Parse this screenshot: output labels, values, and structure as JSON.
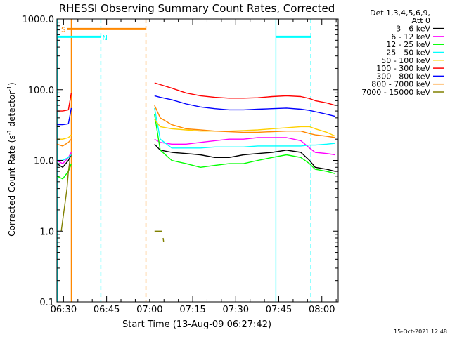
{
  "chart_data": {
    "type": "line",
    "title": "RHESSI Observing Summary Count Rates, Corrected",
    "xlabel": "Start Time (13-Aug-09 06:27:42)",
    "ylabel_main": "Corrected Count Rate (s",
    "ylabel_sup1": "-1",
    "ylabel_mid": " detector",
    "ylabel_sup2": "-1",
    "ylabel_end": ")",
    "y_scale": "log",
    "ylim": [
      0.1,
      1000
    ],
    "xlim_minutes": [
      0,
      98
    ],
    "x_tick_labels": [
      {
        "label": "06:30",
        "minute": 2.3
      },
      {
        "label": "06:45",
        "minute": 17.3
      },
      {
        "label": "07:00",
        "minute": 32.3
      },
      {
        "label": "07:15",
        "minute": 47.3
      },
      {
        "label": "07:30",
        "minute": 62.3
      },
      {
        "label": "07:45",
        "minute": 77.3
      },
      {
        "label": "08:00",
        "minute": 92.3
      }
    ],
    "y_tick_labels": [
      {
        "label": "0.1",
        "value": 0.1
      },
      {
        "label": "1.0",
        "value": 1
      },
      {
        "label": "10.0",
        "value": 10
      },
      {
        "label": "100.0",
        "value": 100
      },
      {
        "label": "1000.0",
        "value": 1000
      }
    ],
    "legend_header": [
      "Det 1,3,4,5,6,9,",
      "Att 0"
    ],
    "legend_placement": "right",
    "series": [
      {
        "name": "3 - 6 keV",
        "color": "#000000",
        "segments": [
          {
            "x": [
              0,
              2,
              4,
              5
            ],
            "y": [
              9,
              8,
              10,
              12
            ]
          },
          {
            "x": [
              34,
              36,
              40,
              45,
              50,
              55,
              60,
              65,
              70,
              75,
              80,
              85,
              88,
              90,
              94,
              97
            ],
            "y": [
              17,
              14,
              13,
              12.5,
              12,
              11,
              11,
              12,
              12.5,
              13,
              14,
              13,
              10,
              8,
              7.5,
              7
            ]
          }
        ]
      },
      {
        "name": "6 - 12 keV",
        "color": "#ff00ff",
        "segments": [
          {
            "x": [
              0,
              2,
              4,
              5
            ],
            "y": [
              10,
              9,
              11,
              13
            ]
          },
          {
            "x": [
              34,
              36,
              40,
              45,
              50,
              55,
              60,
              65,
              70,
              75,
              80,
              85,
              88,
              90,
              94,
              97
            ],
            "y": [
              20,
              18,
              17,
              17,
              18,
              19,
              20,
              20,
              21,
              21,
              21,
              19,
              15,
              13,
              12.5,
              12
            ]
          }
        ]
      },
      {
        "name": "12 - 25 keV",
        "color": "#00ff00",
        "segments": [
          {
            "x": [
              0,
              2,
              4,
              5
            ],
            "y": [
              6,
              5.5,
              7,
              9
            ]
          },
          {
            "x": [
              34,
              36,
              40,
              45,
              50,
              55,
              60,
              65,
              70,
              75,
              80,
              85,
              88,
              90,
              94,
              97
            ],
            "y": [
              45,
              14,
              10,
              9,
              8,
              8.5,
              9,
              9,
              10,
              11,
              12,
              11,
              9,
              7.5,
              7,
              6.5
            ]
          }
        ]
      },
      {
        "name": "25 - 50 keV",
        "color": "#00ffff",
        "segments": [
          {
            "x": [
              0,
              2,
              4,
              5
            ],
            "y": [
              10,
              10,
              11,
              12
            ]
          },
          {
            "x": [
              34,
              36,
              40,
              45,
              50,
              55,
              60,
              65,
              70,
              75,
              80,
              85,
              88,
              90,
              94,
              97
            ],
            "y": [
              55,
              20,
              15,
              15,
              15,
              15.5,
              15.5,
              15.5,
              16,
              16,
              16,
              16,
              16.5,
              16.5,
              17,
              17.5
            ]
          }
        ]
      },
      {
        "name": "50 - 100 keV",
        "color": "#ffd000",
        "segments": [
          {
            "x": [
              0,
              2,
              4,
              5
            ],
            "y": [
              20,
              20,
              21,
              23
            ]
          },
          {
            "x": [
              34,
              36,
              40,
              45,
              50,
              55,
              60,
              65,
              70,
              75,
              80,
              85,
              88,
              90,
              94,
              97
            ],
            "y": [
              38,
              30,
              28,
              27,
              26,
              26,
              26,
              26.5,
              27,
              28,
              29,
              30,
              30,
              28,
              25,
              22
            ]
          }
        ]
      },
      {
        "name": "100 - 300 keV",
        "color": "#ff0000",
        "segments": [
          {
            "x": [
              0,
              2,
              4,
              5
            ],
            "y": [
              50,
              50,
              52,
              90
            ]
          },
          {
            "x": [
              34,
              36,
              40,
              45,
              50,
              55,
              60,
              65,
              70,
              75,
              80,
              85,
              88,
              90,
              94,
              97
            ],
            "y": [
              125,
              118,
              105,
              90,
              82,
              78,
              76,
              76,
              77,
              80,
              82,
              80,
              75,
              70,
              65,
              60
            ]
          }
        ]
      },
      {
        "name": "300 - 800 keV",
        "color": "#0000ff",
        "segments": [
          {
            "x": [
              0,
              2,
              4,
              5
            ],
            "y": [
              32,
              32,
              33,
              55
            ]
          },
          {
            "x": [
              34,
              36,
              40,
              45,
              50,
              55,
              60,
              65,
              70,
              75,
              80,
              85,
              88,
              90,
              94,
              97
            ],
            "y": [
              82,
              78,
              72,
              63,
              57,
              54,
              52,
              52,
              53,
              54,
              55,
              53,
              51,
              49,
              45,
              42
            ]
          }
        ]
      },
      {
        "name": "800 - 7000 keV",
        "color": "#ff8800",
        "segments": [
          {
            "x": [
              0,
              2,
              4,
              5
            ],
            "y": [
              17,
              16,
              18,
              20
            ]
          },
          {
            "x": [
              34,
              36,
              40,
              45,
              50,
              55,
              60,
              65,
              70,
              75,
              80,
              85,
              88,
              90,
              94,
              97
            ],
            "y": [
              60,
              40,
              32,
              28,
              27,
              26,
              25.5,
              25,
              25,
              25.5,
              26,
              26,
              24,
              23,
              22,
              21
            ]
          }
        ]
      },
      {
        "name": "7000 - 15000 keV",
        "color": "#808000",
        "segments": [
          {
            "x": [
              1.5,
              2.5,
              3.5,
              4,
              4.5
            ],
            "y": [
              1.0,
              2,
              4,
              7,
              10
            ]
          },
          {
            "x": [
              34,
              34.5,
              35,
              35.5,
              36,
              36.5
            ],
            "y": [
              1.0,
              1.0,
              1.0,
              1.0,
              1.0,
              1.0
            ]
          },
          {
            "x": [
              37,
              37.2
            ],
            "y": [
              0.8,
              0.7
            ]
          }
        ]
      }
    ],
    "annotations": [
      {
        "label": "S",
        "color": "#ff8800",
        "minute": 1.5,
        "y": 720
      },
      {
        "label": "N",
        "color": "#00ffff",
        "minute": 15.8,
        "y": 550
      }
    ],
    "flags": [
      {
        "color": "#ff8800",
        "x": [
          3.5,
          31.0
        ],
        "y": 720
      },
      {
        "color": "#00ffff",
        "x": [
          0,
          15.3
        ],
        "y": 560
      },
      {
        "color": "#00ffff",
        "x": [
          76.3,
          88.5
        ],
        "y": 560
      }
    ],
    "vlines": [
      {
        "color": "#00ffff",
        "style": "solid",
        "minute": 0.1
      },
      {
        "color": "#ff8800",
        "style": "solid",
        "minute": 5.0
      },
      {
        "color": "#00ffff",
        "style": "dashed",
        "minute": 15.3
      },
      {
        "color": "#ff8800",
        "style": "dashed",
        "minute": 31.0
      },
      {
        "color": "#00ffff",
        "style": "solid",
        "minute": 76.3
      },
      {
        "color": "#00ffff",
        "style": "dashed",
        "minute": 88.5
      }
    ]
  },
  "footer": {
    "timestamp": "15-Oct-2021 12:48"
  }
}
